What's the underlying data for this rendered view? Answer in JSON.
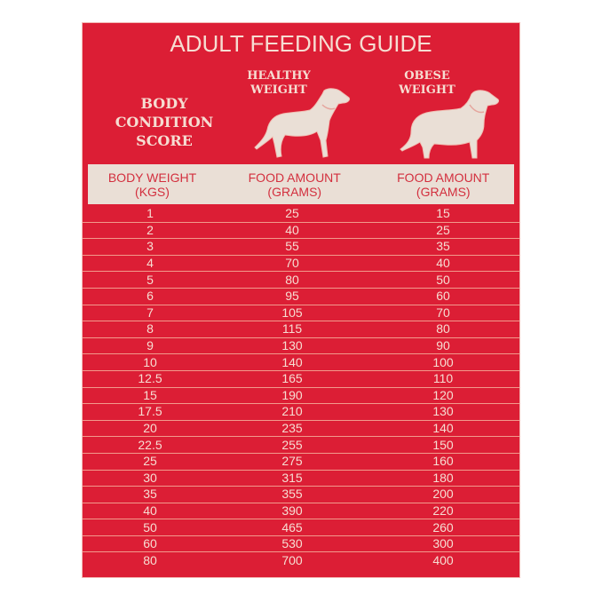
{
  "title": "ADULT FEEDING GUIDE",
  "body_condition_label": [
    "BODY",
    "CONDITION",
    "SCORE"
  ],
  "columns": {
    "healthy": {
      "label": [
        "HEALTHY",
        "WEIGHT"
      ],
      "icon": "healthy-dog-silhouette"
    },
    "obese": {
      "label": [
        "OBESE",
        "WEIGHT"
      ],
      "icon": "obese-dog-silhouette"
    }
  },
  "table_header": {
    "col1": [
      "BODY WEIGHT",
      "(KGS)"
    ],
    "col2": [
      "FOOD AMOUNT",
      "(GRAMS)"
    ],
    "col3": [
      "FOOD AMOUNT",
      "(GRAMS)"
    ]
  },
  "rows": [
    {
      "kg": "1",
      "healthy": "25",
      "obese": "15"
    },
    {
      "kg": "2",
      "healthy": "40",
      "obese": "25"
    },
    {
      "kg": "3",
      "healthy": "55",
      "obese": "35"
    },
    {
      "kg": "4",
      "healthy": "70",
      "obese": "40"
    },
    {
      "kg": "5",
      "healthy": "80",
      "obese": "50"
    },
    {
      "kg": "6",
      "healthy": "95",
      "obese": "60"
    },
    {
      "kg": "7",
      "healthy": "105",
      "obese": "70"
    },
    {
      "kg": "8",
      "healthy": "115",
      "obese": "80"
    },
    {
      "kg": "9",
      "healthy": "130",
      "obese": "90"
    },
    {
      "kg": "10",
      "healthy": "140",
      "obese": "100"
    },
    {
      "kg": "12.5",
      "healthy": "165",
      "obese": "110"
    },
    {
      "kg": "15",
      "healthy": "190",
      "obese": "120"
    },
    {
      "kg": "17.5",
      "healthy": "210",
      "obese": "130"
    },
    {
      "kg": "20",
      "healthy": "235",
      "obese": "140"
    },
    {
      "kg": "22.5",
      "healthy": "255",
      "obese": "150"
    },
    {
      "kg": "25",
      "healthy": "275",
      "obese": "160"
    },
    {
      "kg": "30",
      "healthy": "315",
      "obese": "180"
    },
    {
      "kg": "35",
      "healthy": "355",
      "obese": "200"
    },
    {
      "kg": "40",
      "healthy": "390",
      "obese": "220"
    },
    {
      "kg": "50",
      "healthy": "465",
      "obese": "260"
    },
    {
      "kg": "60",
      "healthy": "530",
      "obese": "300"
    },
    {
      "kg": "80",
      "healthy": "700",
      "obese": "400"
    }
  ],
  "colors": {
    "background_red": "#dc1e35",
    "cream": "#f6ddd2",
    "header_band": "#eadfd6",
    "header_text": "#d32f3e",
    "row_divider": "#f29a8c"
  }
}
